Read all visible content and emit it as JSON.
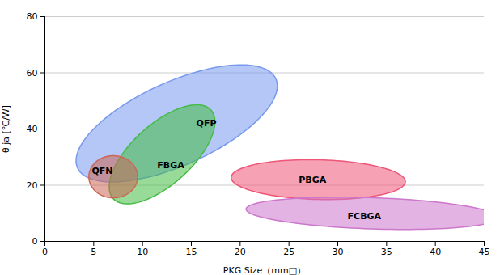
{
  "chart_data": {
    "type": "ellipse",
    "xlabel": "PKG Size（mm□）",
    "ylabel": "θ ja [℃/W]",
    "xlim": [
      0,
      45
    ],
    "ylim": [
      0,
      80
    ],
    "xticks": [
      0,
      5,
      10,
      15,
      20,
      25,
      30,
      35,
      40,
      45
    ],
    "yticks": [
      0,
      20,
      40,
      60,
      80
    ],
    "grid": true,
    "series": [
      {
        "name": "QFP",
        "color": "#7799ee",
        "cx": 13.5,
        "cy": 42,
        "width": 15,
        "height": 44,
        "angle": -20,
        "label_x": 15.5,
        "label_y": 42
      },
      {
        "name": "FBGA",
        "color": "#44bb44",
        "cx": 12.0,
        "cy": 31,
        "width": 8,
        "height": 36,
        "angle": -12,
        "label_x": 11.5,
        "label_y": 27
      },
      {
        "name": "QFN",
        "color": "#cc6655",
        "cx": 7.0,
        "cy": 23,
        "width": 5,
        "height": 15,
        "angle": 0,
        "label_x": 4.8,
        "label_y": 25
      },
      {
        "name": "PBGA",
        "color": "#ee5577",
        "cx": 28.0,
        "cy": 22,
        "width": 18,
        "height": 14,
        "angle": -12,
        "label_x": 26.0,
        "label_y": 22
      },
      {
        "name": "FCBGA",
        "color": "#cc77cc",
        "cx": 33.5,
        "cy": 10,
        "width": 26,
        "height": 11,
        "angle": -8,
        "label_x": 31.0,
        "label_y": 9
      }
    ]
  }
}
